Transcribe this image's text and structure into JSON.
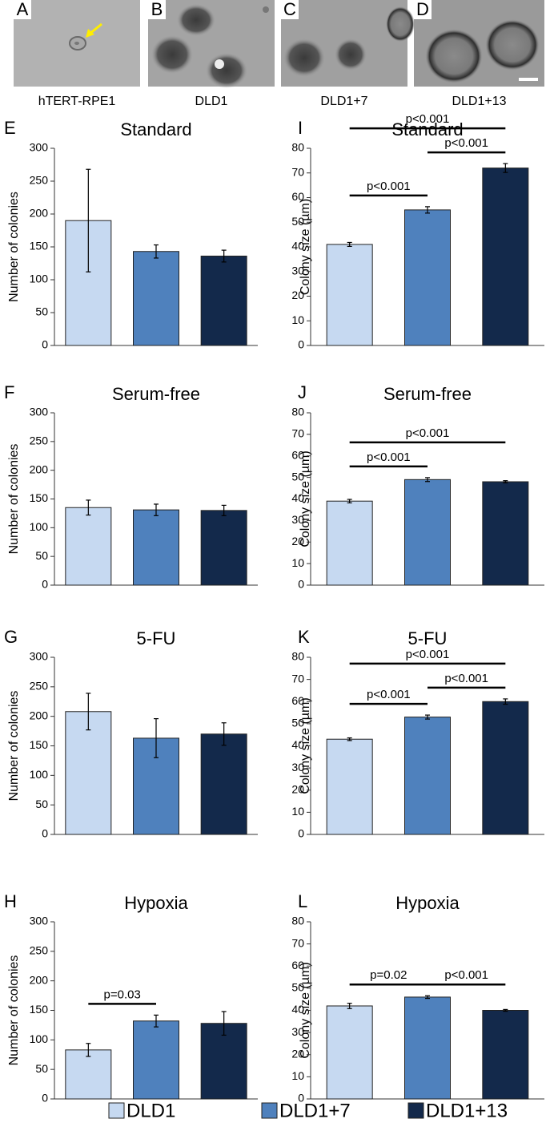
{
  "images": [
    {
      "letter": "A",
      "caption": "hTERT-RPE1"
    },
    {
      "letter": "B",
      "caption": "DLD1"
    },
    {
      "letter": "C",
      "caption": "DLD1+7"
    },
    {
      "letter": "D",
      "caption": "DLD1+13"
    }
  ],
  "legend": {
    "labels": [
      "DLD1",
      "DLD1+7",
      "DLD1+13"
    ],
    "colors": [
      "#c6d9f1",
      "#4f81bd",
      "#13294b"
    ]
  },
  "chart_data": [
    {
      "type": "bar",
      "panel": "E",
      "title": "Standard",
      "ylabel": "Number of colonies",
      "values": [
        190,
        143,
        136
      ],
      "errors": [
        78,
        10,
        9
      ],
      "ylim": [
        0,
        300
      ],
      "yticks": [
        0,
        50,
        100,
        150,
        200,
        250,
        300
      ],
      "annotations": []
    },
    {
      "type": "bar",
      "panel": "F",
      "title": "Serum-free",
      "ylabel": "Number of colonies",
      "values": [
        135,
        131,
        130
      ],
      "errors": [
        13,
        10,
        9
      ],
      "ylim": [
        0,
        300
      ],
      "yticks": [
        0,
        50,
        100,
        150,
        200,
        250,
        300
      ],
      "annotations": []
    },
    {
      "type": "bar",
      "panel": "G",
      "title": "5-FU",
      "ylabel": "Number of colonies",
      "values": [
        208,
        163,
        170
      ],
      "errors": [
        31,
        33,
        19
      ],
      "ylim": [
        0,
        300
      ],
      "yticks": [
        0,
        50,
        100,
        150,
        200,
        250,
        300
      ],
      "annotations": []
    },
    {
      "type": "bar",
      "panel": "H",
      "title": "Hypoxia",
      "ylabel": "Number of colonies",
      "values": [
        83,
        132,
        128
      ],
      "errors": [
        11,
        10,
        20
      ],
      "ylim": [
        0,
        300
      ],
      "yticks": [
        0,
        50,
        100,
        150,
        200,
        250,
        300
      ],
      "annotations": [
        {
          "text": "p=0.03",
          "bars": [
            0,
            1
          ]
        }
      ]
    },
    {
      "type": "bar",
      "panel": "I",
      "title": "Standard",
      "ylabel": "Colony size (µm)",
      "values": [
        41,
        55,
        72
      ],
      "errors": [
        0.8,
        1.3,
        1.8
      ],
      "ylim": [
        0,
        80
      ],
      "yticks": [
        0,
        10,
        20,
        30,
        40,
        50,
        60,
        70,
        80
      ],
      "annotations": [
        {
          "text": "p<0.001",
          "bars": [
            0,
            1
          ]
        },
        {
          "text": "p<0.001",
          "bars": [
            0,
            2
          ]
        },
        {
          "text": "p<0.001",
          "bars": [
            1,
            2
          ]
        }
      ]
    },
    {
      "type": "bar",
      "panel": "J",
      "title": "Serum-free",
      "ylabel": "Colony size (µm)",
      "values": [
        39,
        49,
        48
      ],
      "errors": [
        0.8,
        0.9,
        0.5
      ],
      "ylim": [
        0,
        80
      ],
      "yticks": [
        0,
        10,
        20,
        30,
        40,
        50,
        60,
        70,
        80
      ],
      "annotations": [
        {
          "text": "p<0.001",
          "bars": [
            0,
            1
          ]
        },
        {
          "text": "p<0.001",
          "bars": [
            0,
            2
          ]
        }
      ]
    },
    {
      "type": "bar",
      "panel": "K",
      "title": "5-FU",
      "ylabel": "Colony size (µm)",
      "values": [
        43,
        53,
        60
      ],
      "errors": [
        0.6,
        0.9,
        1.2
      ],
      "ylim": [
        0,
        80
      ],
      "yticks": [
        0,
        10,
        20,
        30,
        40,
        50,
        60,
        70,
        80
      ],
      "annotations": [
        {
          "text": "p<0.001",
          "bars": [
            0,
            2
          ]
        },
        {
          "text": "p<0.001",
          "bars": [
            0,
            1
          ]
        },
        {
          "text": "p<0.001",
          "bars": [
            1,
            2
          ]
        }
      ]
    },
    {
      "type": "bar",
      "panel": "L",
      "title": "Hypoxia",
      "ylabel": "Colony size (µm)",
      "values": [
        42,
        46,
        40
      ],
      "errors": [
        1.2,
        0.6,
        0.4
      ],
      "ylim": [
        0,
        80
      ],
      "yticks": [
        0,
        10,
        20,
        30,
        40,
        50,
        60,
        70,
        80
      ],
      "annotations": [
        {
          "text": "p=0.02",
          "bars": [
            0,
            1
          ]
        },
        {
          "text": "p<0.001",
          "bars": [
            1,
            2
          ]
        }
      ]
    }
  ]
}
